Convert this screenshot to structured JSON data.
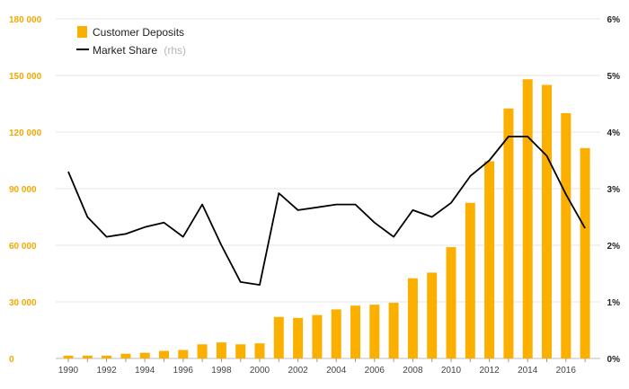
{
  "chart_data": {
    "type": "bar+line",
    "title": "",
    "xlabel": "",
    "ylabel": "",
    "x": [
      1990,
      1991,
      1992,
      1993,
      1994,
      1995,
      1996,
      1997,
      1998,
      1999,
      2000,
      2001,
      2002,
      2003,
      2004,
      2005,
      2006,
      2007,
      2008,
      2009,
      2010,
      2011,
      2012,
      2013,
      2014,
      2015,
      2016,
      2017
    ],
    "x_tick_labels": [
      "1990",
      "1992",
      "1994",
      "1996",
      "1998",
      "2000",
      "2002",
      "2004",
      "2006",
      "2008",
      "2010",
      "2012",
      "2014",
      "2016"
    ],
    "series": [
      {
        "name": "Customer Deposits",
        "kind": "bar",
        "axis": "left",
        "color": "#fbb000",
        "values": [
          1500,
          1500,
          1500,
          2500,
          3000,
          4000,
          4500,
          7500,
          8500,
          7500,
          8000,
          22000,
          21500,
          23000,
          26000,
          28000,
          28500,
          29500,
          42500,
          45500,
          59000,
          82500,
          104500,
          132500,
          148000,
          145000,
          130000,
          111500
        ]
      },
      {
        "name": "Market Share",
        "name_note": "(rhs)",
        "kind": "line",
        "axis": "right",
        "color": "#000000",
        "values": [
          3.3,
          2.5,
          2.15,
          2.2,
          2.32,
          2.4,
          2.15,
          2.72,
          2.0,
          1.35,
          1.3,
          2.92,
          2.62,
          2.67,
          2.72,
          2.72,
          2.4,
          2.15,
          2.62,
          2.5,
          2.75,
          3.22,
          3.5,
          3.92,
          3.92,
          3.58,
          2.9,
          2.3
        ]
      }
    ],
    "y_left": {
      "range": [
        0,
        180000
      ],
      "ticks": [
        0,
        30000,
        60000,
        90000,
        120000,
        150000,
        180000
      ],
      "tick_labels": [
        "0",
        "30 000",
        "60 000",
        "90 000",
        "120 000",
        "150 000",
        "180 000"
      ],
      "color": "#f5a800"
    },
    "y_right": {
      "range": [
        0,
        6
      ],
      "ticks": [
        0,
        1,
        2,
        3,
        4,
        5,
        6
      ],
      "tick_labels": [
        "0%",
        "1%",
        "2%",
        "3%",
        "4%",
        "5%",
        "6%"
      ],
      "color": "#222222"
    },
    "grid": true,
    "legend": "top-left"
  }
}
